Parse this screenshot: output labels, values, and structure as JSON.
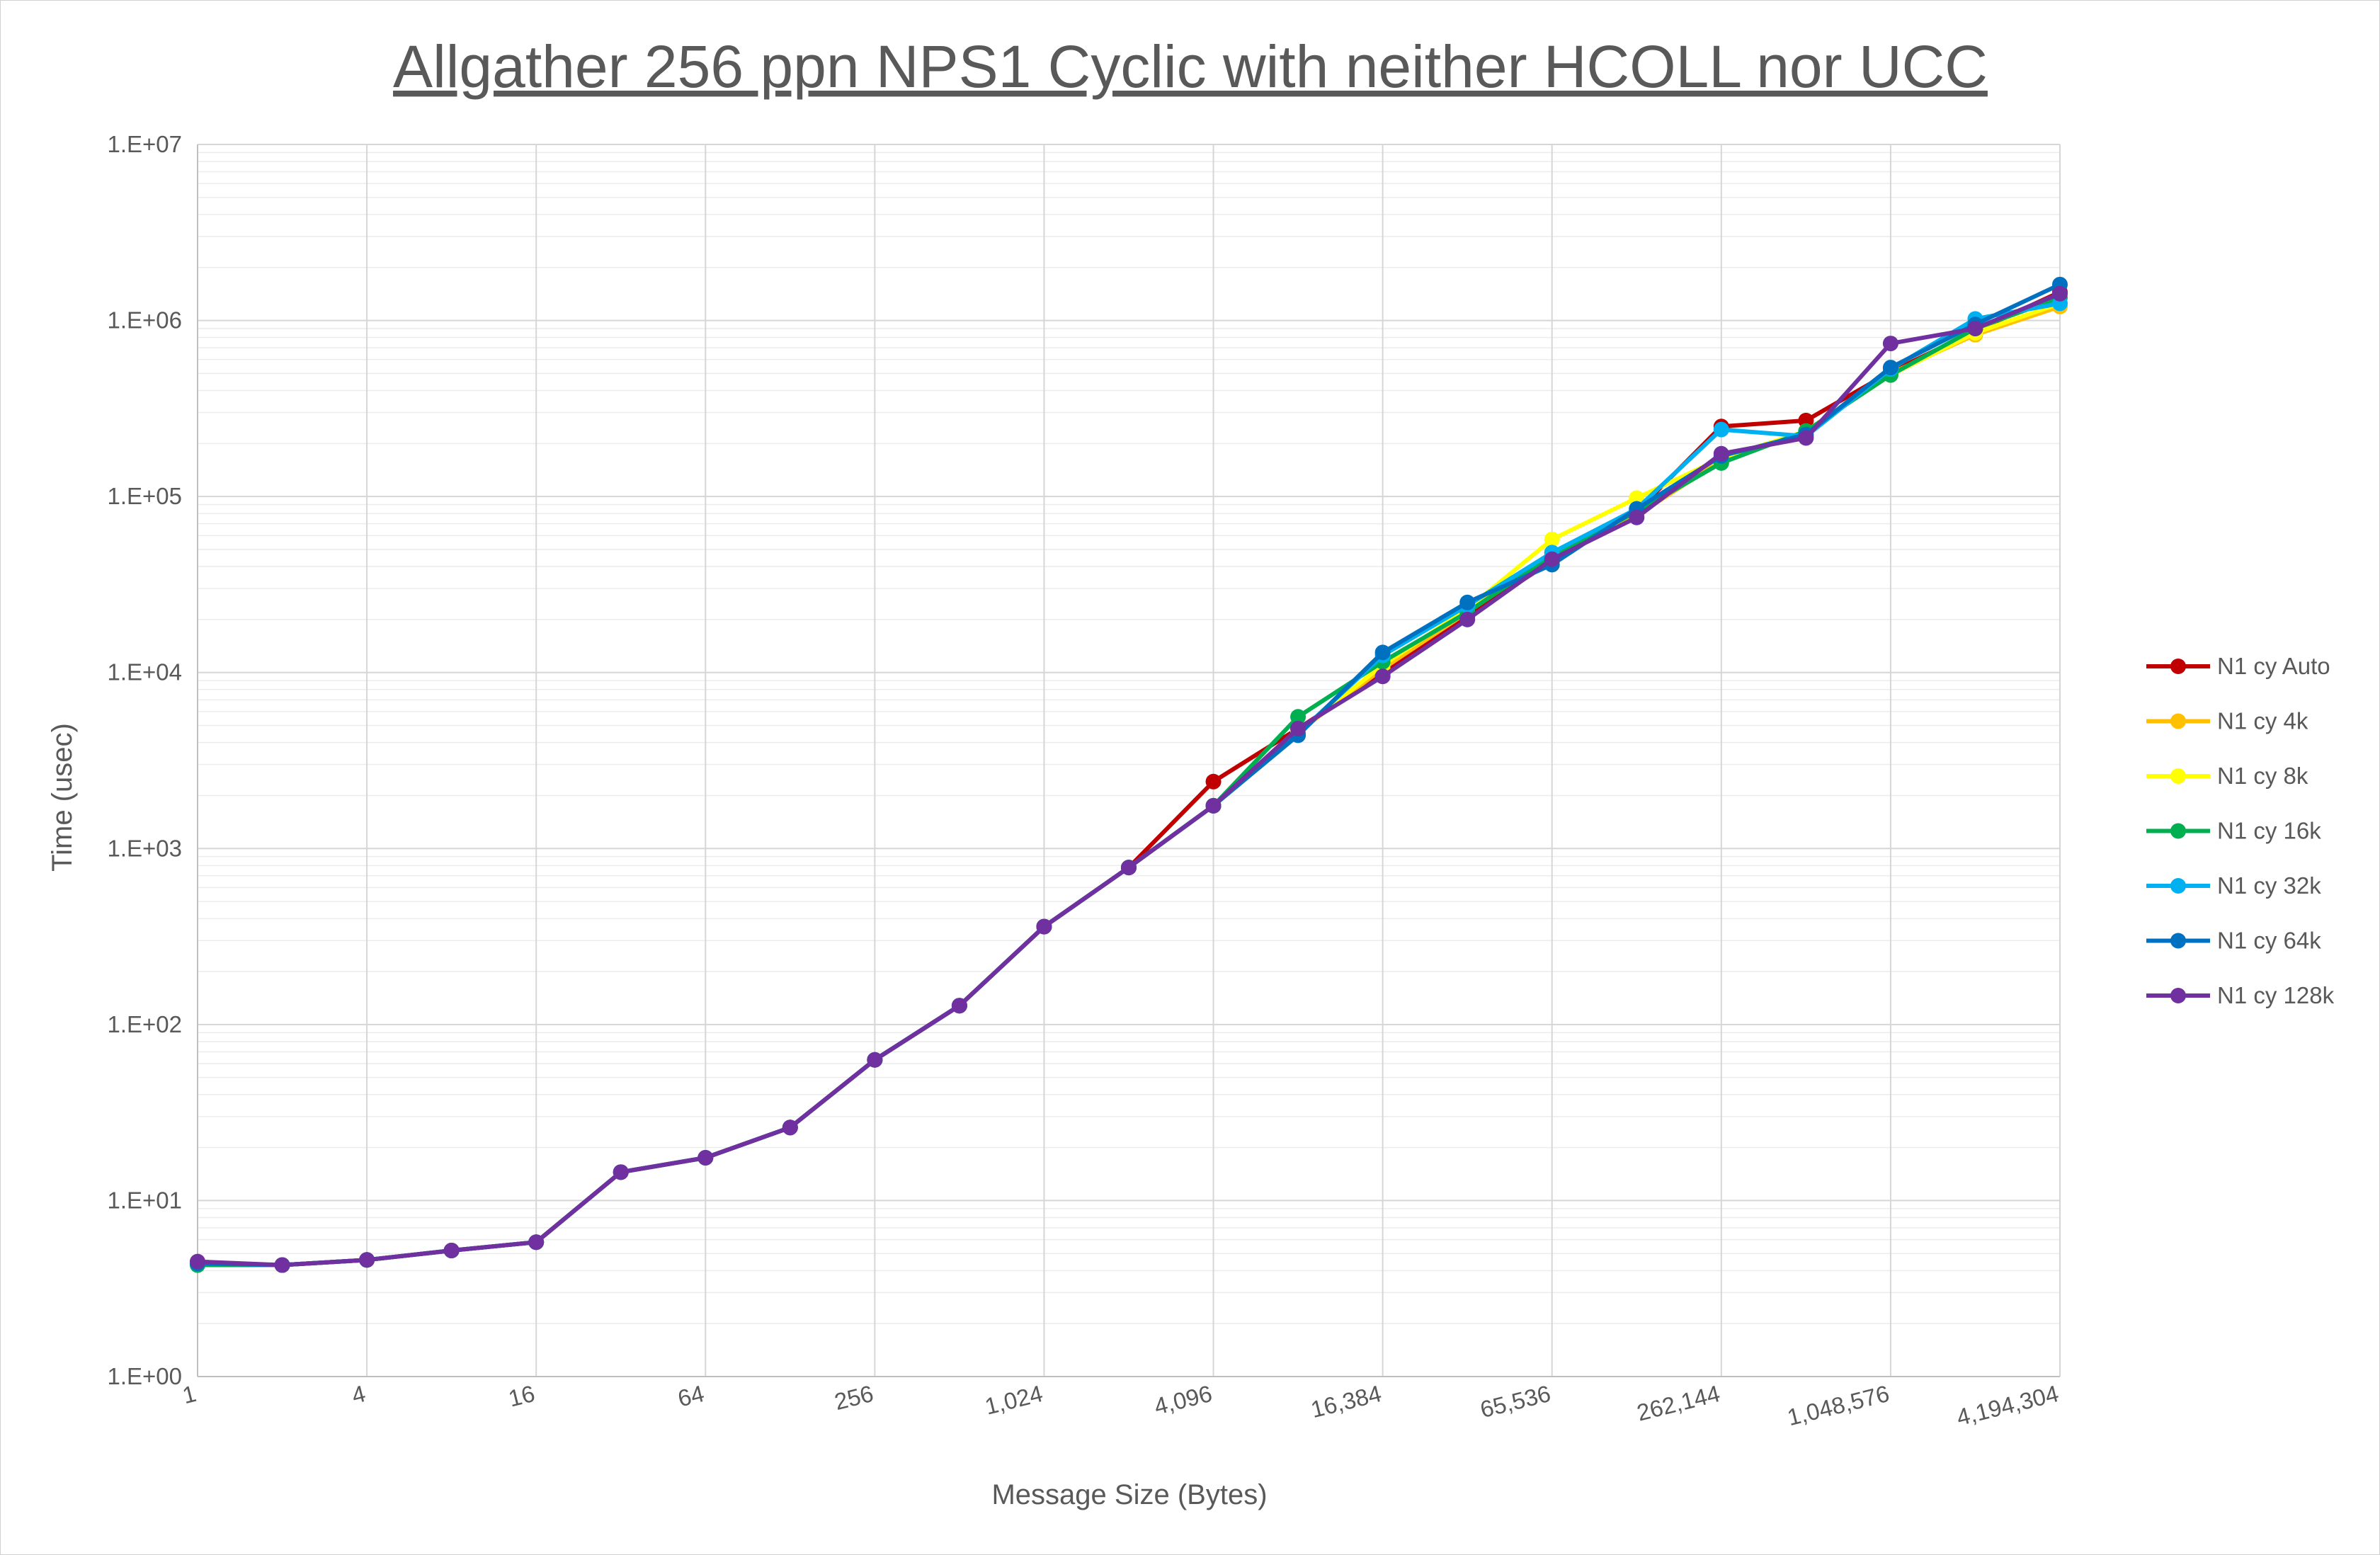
{
  "chart_data": {
    "type": "line",
    "title": "Allgather 256 ppn NPS1 Cyclic with neither HCOLL nor UCC",
    "xlabel": "Message Size (Bytes)",
    "ylabel": "Time (usec)",
    "x_scale": "log2",
    "y_scale": "log10",
    "xlim": [
      1,
      4194304
    ],
    "ylim": [
      1,
      10000000
    ],
    "x_tick_labels": [
      "1",
      "4",
      "16",
      "64",
      "256",
      "1,024",
      "4,096",
      "16,384",
      "65,536",
      "262,144",
      "1,048,576",
      "4,194,304"
    ],
    "y_tick_labels": [
      "1.E+00",
      "1.E+01",
      "1.E+02",
      "1.E+03",
      "1.E+04",
      "1.E+05",
      "1.E+06",
      "1.E+07"
    ],
    "grid": true,
    "legend_position": "right",
    "x": [
      1,
      2,
      4,
      8,
      16,
      32,
      64,
      128,
      256,
      512,
      1024,
      2048,
      4096,
      8192,
      16384,
      32768,
      65536,
      131072,
      262144,
      524288,
      1048576,
      2097152,
      4194304
    ],
    "series": [
      {
        "name": "N1 cy Auto",
        "color": "#C00000",
        "values": [
          4.4,
          4.3,
          4.6,
          5.2,
          5.8,
          14.5,
          17.5,
          26,
          63,
          128,
          360,
          780,
          2400,
          4800,
          9800,
          21000,
          43000,
          82000,
          250000,
          270000,
          510000,
          870000,
          1450000
        ]
      },
      {
        "name": "N1 cy 4k",
        "color": "#FFC000",
        "values": [
          4.4,
          4.3,
          4.6,
          5.2,
          5.8,
          14.5,
          17.5,
          26,
          63,
          128,
          360,
          780,
          1750,
          4600,
          10500,
          22000,
          48000,
          78000,
          160000,
          235000,
          500000,
          830000,
          1200000
        ]
      },
      {
        "name": "N1 cy 8k",
        "color": "#FFFF00",
        "values": [
          4.4,
          4.3,
          4.6,
          5.2,
          5.8,
          14.5,
          17.5,
          26,
          63,
          128,
          360,
          780,
          1750,
          4600,
          11000,
          23000,
          57000,
          98000,
          165000,
          235000,
          490000,
          850000,
          1250000
        ]
      },
      {
        "name": "N1 cy 16k",
        "color": "#00B050",
        "values": [
          4.3,
          4.3,
          4.6,
          5.2,
          5.8,
          14.5,
          17.5,
          26,
          63,
          128,
          360,
          780,
          1750,
          5600,
          11500,
          22000,
          46000,
          82000,
          155000,
          235000,
          490000,
          900000,
          1350000
        ]
      },
      {
        "name": "N1 cy 32k",
        "color": "#00B0F0",
        "values": [
          4.4,
          4.3,
          4.6,
          5.2,
          5.8,
          14.5,
          17.5,
          26,
          63,
          128,
          360,
          780,
          1750,
          4500,
          12500,
          24000,
          48000,
          85000,
          240000,
          220000,
          530000,
          1020000,
          1250000
        ]
      },
      {
        "name": "N1 cy 64k",
        "color": "#0070C0",
        "values": [
          4.4,
          4.3,
          4.6,
          5.2,
          5.8,
          14.5,
          17.5,
          26,
          63,
          128,
          360,
          780,
          1750,
          4400,
          13000,
          25000,
          41000,
          85000,
          170000,
          225000,
          540000,
          950000,
          1600000
        ]
      },
      {
        "name": "N1 cy 128k",
        "color": "#7030A0",
        "values": [
          4.5,
          4.3,
          4.6,
          5.2,
          5.8,
          14.5,
          17.5,
          26,
          63,
          128,
          360,
          780,
          1750,
          4800,
          9500,
          20000,
          44000,
          76000,
          175000,
          215000,
          740000,
          900000,
          1420000
        ]
      }
    ]
  }
}
